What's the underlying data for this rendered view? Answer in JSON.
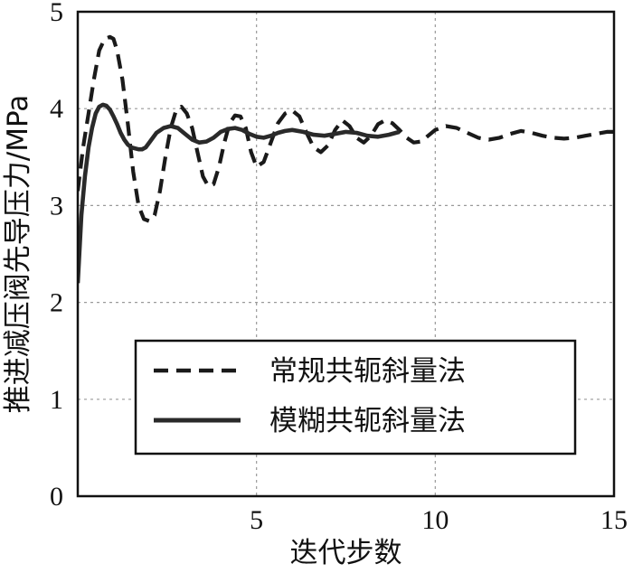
{
  "chart_data": {
    "type": "line",
    "xlabel": "迭代步数",
    "ylabel": "推进减压阀先导压力/MPa",
    "xlim": [
      0,
      15
    ],
    "ylim": [
      0,
      5
    ],
    "xticks": [
      5,
      10,
      15
    ],
    "yticks": [
      0,
      1,
      2,
      3,
      4,
      5
    ],
    "grid": true,
    "legend_position": "lower-center",
    "series": [
      {
        "name": "常规共轭斜量法",
        "style": "dashed",
        "color": "#1a1a1a",
        "x": [
          0.0,
          0.15,
          0.3,
          0.45,
          0.6,
          0.75,
          0.9,
          1.0,
          1.1,
          1.25,
          1.4,
          1.55,
          1.7,
          1.85,
          2.0,
          2.15,
          2.3,
          2.45,
          2.6,
          2.75,
          2.9,
          3.05,
          3.2,
          3.35,
          3.5,
          3.65,
          3.8,
          3.95,
          4.1,
          4.25,
          4.4,
          4.55,
          4.7,
          4.85,
          5.0,
          5.2,
          5.4,
          5.6,
          5.8,
          6.0,
          6.2,
          6.4,
          6.6,
          6.8,
          7.0,
          7.2,
          7.4,
          7.6,
          7.8,
          8.0,
          8.2,
          8.4,
          8.6,
          8.8,
          9.0,
          9.2,
          9.4,
          9.6,
          9.8,
          10.0,
          10.3,
          10.6,
          10.9,
          11.2,
          11.5,
          11.8,
          12.1,
          12.4,
          12.7,
          13.0,
          13.3,
          13.6,
          13.9,
          14.2,
          14.5,
          14.8,
          15.0
        ],
        "y": [
          3.15,
          3.6,
          3.95,
          4.3,
          4.6,
          4.72,
          4.74,
          4.72,
          4.6,
          4.3,
          3.85,
          3.35,
          3.0,
          2.86,
          2.84,
          2.9,
          3.15,
          3.5,
          3.8,
          3.98,
          4.02,
          3.95,
          3.8,
          3.55,
          3.3,
          3.2,
          3.22,
          3.4,
          3.65,
          3.85,
          3.93,
          3.92,
          3.8,
          3.55,
          3.4,
          3.45,
          3.65,
          3.85,
          3.95,
          3.98,
          3.92,
          3.75,
          3.6,
          3.55,
          3.62,
          3.78,
          3.88,
          3.82,
          3.7,
          3.65,
          3.72,
          3.84,
          3.88,
          3.85,
          3.78,
          3.7,
          3.65,
          3.66,
          3.72,
          3.78,
          3.82,
          3.8,
          3.75,
          3.7,
          3.68,
          3.7,
          3.74,
          3.77,
          3.75,
          3.72,
          3.7,
          3.69,
          3.7,
          3.72,
          3.74,
          3.76,
          3.76
        ]
      },
      {
        "name": "模糊共轭斜量法",
        "style": "solid",
        "color": "#2a2a2a",
        "x": [
          0.0,
          0.1,
          0.2,
          0.3,
          0.4,
          0.5,
          0.6,
          0.7,
          0.8,
          0.9,
          1.0,
          1.1,
          1.2,
          1.3,
          1.4,
          1.5,
          1.6,
          1.7,
          1.8,
          1.9,
          2.0,
          2.2,
          2.4,
          2.6,
          2.8,
          3.0,
          3.2,
          3.4,
          3.6,
          3.8,
          4.0,
          4.2,
          4.4,
          4.6,
          4.8,
          5.0,
          5.2,
          5.4,
          5.6,
          5.8,
          6.0,
          6.3,
          6.6,
          6.9,
          7.2,
          7.5,
          7.8,
          8.1,
          8.4,
          8.7,
          9.0
        ],
        "y": [
          2.2,
          2.9,
          3.3,
          3.6,
          3.8,
          3.95,
          4.02,
          4.04,
          4.03,
          3.99,
          3.92,
          3.84,
          3.75,
          3.68,
          3.63,
          3.6,
          3.59,
          3.58,
          3.58,
          3.6,
          3.65,
          3.75,
          3.8,
          3.82,
          3.8,
          3.74,
          3.68,
          3.65,
          3.66,
          3.7,
          3.76,
          3.79,
          3.8,
          3.78,
          3.74,
          3.71,
          3.7,
          3.72,
          3.75,
          3.77,
          3.78,
          3.76,
          3.73,
          3.72,
          3.74,
          3.76,
          3.75,
          3.72,
          3.71,
          3.73,
          3.76
        ]
      }
    ]
  }
}
